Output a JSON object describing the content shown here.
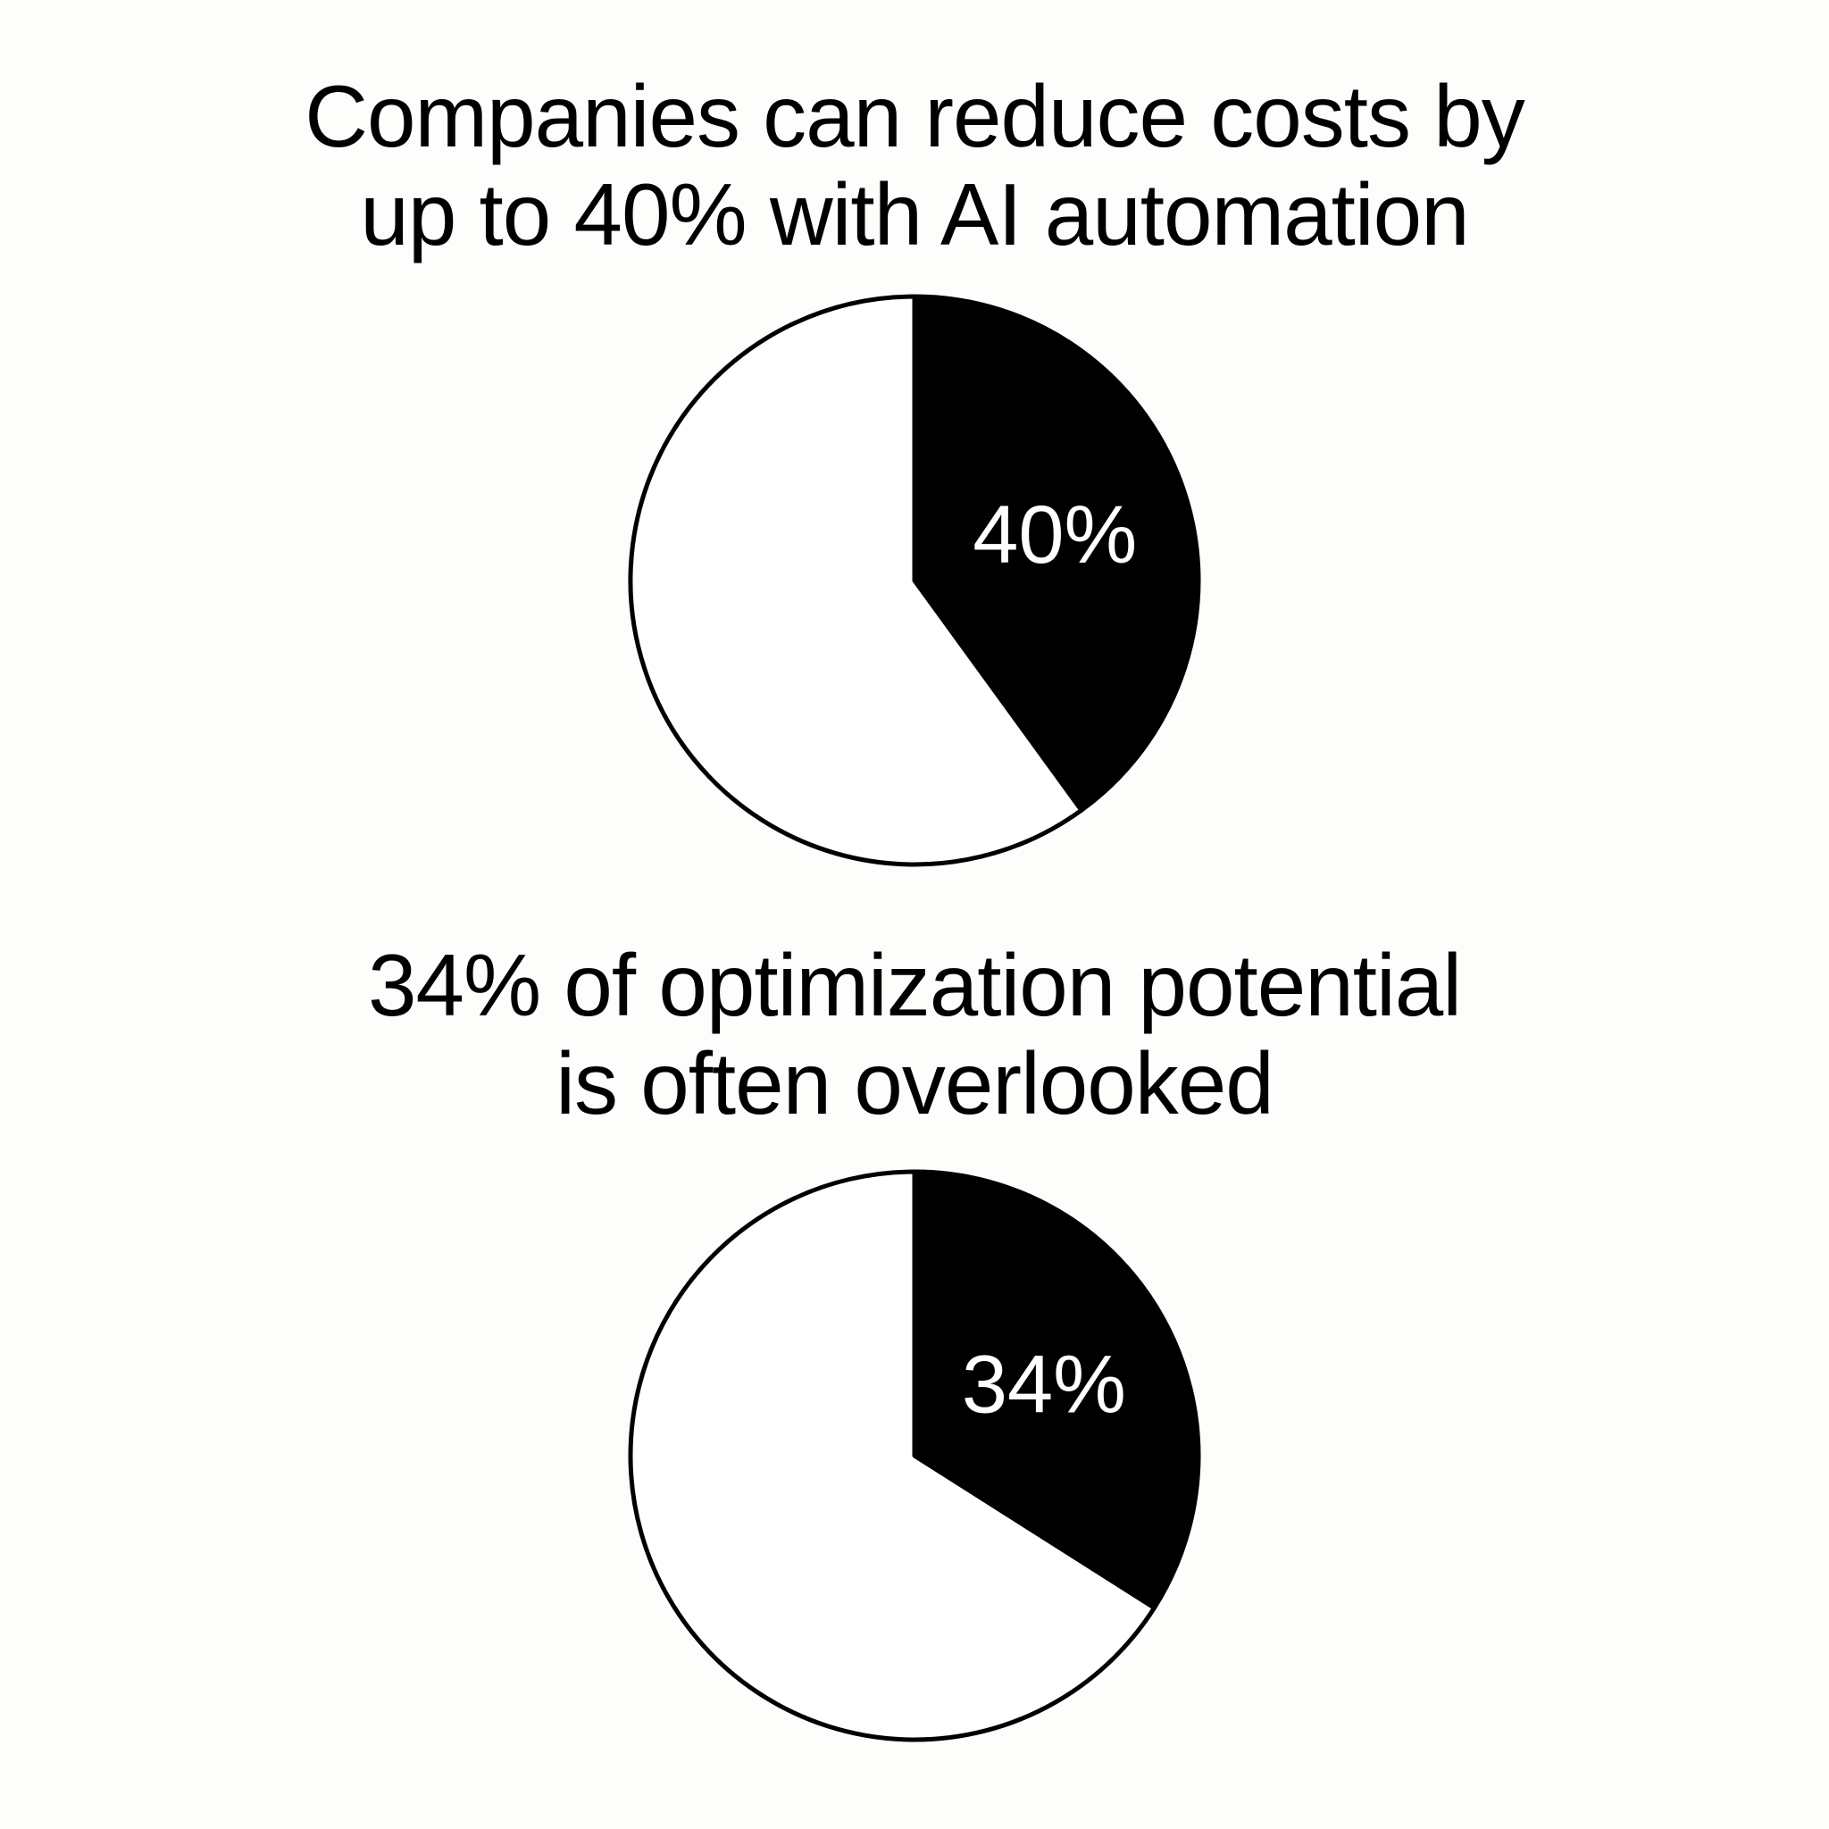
{
  "colors": {
    "background": "#fdfdfb",
    "highlight_fill": "#000000",
    "remainder_fill": "#ffffff",
    "outline": "#000000",
    "label_text": "#ffffff"
  },
  "chart_data": [
    {
      "type": "pie",
      "title_lines": [
        "Companies can reduce costs by",
        "up to 40% with AI automation"
      ],
      "slices": [
        {
          "label": "40%",
          "value": 40,
          "highlighted": true
        },
        {
          "value": 60,
          "highlighted": false
        }
      ],
      "start": "12 o'clock",
      "direction": "clockwise",
      "legend": "none"
    },
    {
      "type": "pie",
      "title_lines": [
        "34% of optimization potential",
        "is often overlooked"
      ],
      "slices": [
        {
          "label": "34%",
          "value": 34,
          "highlighted": true
        },
        {
          "value": 66,
          "highlighted": false
        }
      ],
      "start": "12 o'clock",
      "direction": "clockwise",
      "legend": "none"
    }
  ]
}
